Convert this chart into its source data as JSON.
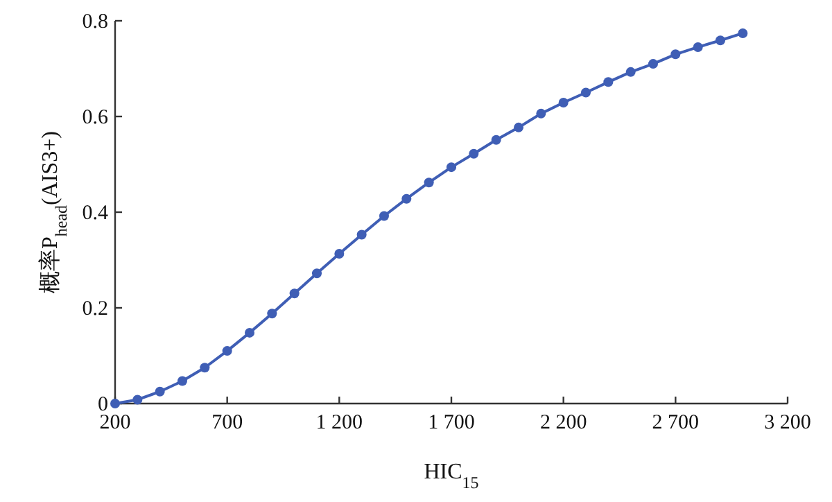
{
  "chart_data": {
    "type": "line",
    "xlabel": "HIC$_{15}$",
    "ylabel": "概率P$_{head}$(AIS3+)",
    "x": [
      200,
      300,
      400,
      500,
      600,
      700,
      800,
      900,
      1000,
      1100,
      1200,
      1300,
      1400,
      1500,
      1600,
      1700,
      1800,
      1900,
      2000,
      2100,
      2200,
      2300,
      2400,
      2500,
      2600,
      2700,
      2800,
      2900,
      3000
    ],
    "series": [
      {
        "color": "#3f5eb5",
        "values": [
          0,
          0.008,
          0.025,
          0.047,
          0.075,
          0.11,
          0.148,
          0.188,
          0.23,
          0.272,
          0.313,
          0.353,
          0.392,
          0.428,
          0.462,
          0.494,
          0.522,
          0.551,
          0.577,
          0.606,
          0.629,
          0.65,
          0.672,
          0.693,
          0.71,
          0.73,
          0.745,
          0.759,
          0.774
        ]
      }
    ],
    "xlim": [
      200,
      3200
    ],
    "ylim": [
      0,
      0.8
    ],
    "xticks": [
      200,
      700,
      {
        "value": 1200,
        "label": "1 200"
      },
      {
        "value": 1700,
        "label": "1 700"
      },
      {
        "value": 2200,
        "label": "2 200"
      },
      {
        "value": 2700,
        "label": "2 700"
      },
      {
        "value": 3200,
        "label": "3 200"
      }
    ],
    "yticks": [
      0,
      0.2,
      0.4,
      0.6,
      0.8
    ],
    "marker": "circle",
    "line_style": "solid",
    "grid": false
  }
}
